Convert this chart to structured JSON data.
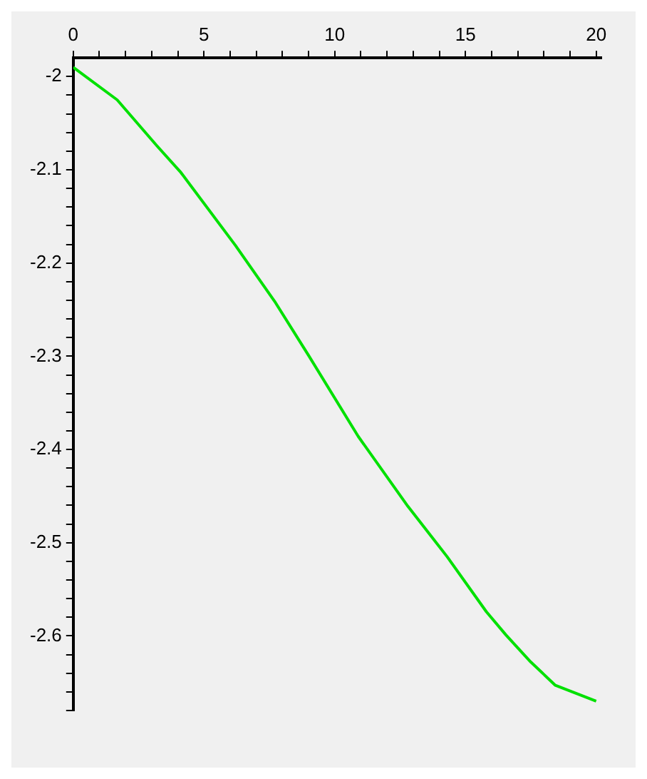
{
  "chart_data": {
    "type": "line",
    "x": [
      0,
      1.68,
      3.19,
      4.12,
      6.2,
      7.7,
      9.02,
      10.9,
      12.8,
      14.3,
      15.8,
      16.55,
      17.5,
      18.44,
      20
    ],
    "series": [
      {
        "color": "#00e000",
        "values": [
          -1.99,
          -2.025,
          -2.074,
          -2.103,
          -2.181,
          -2.241,
          -2.3,
          -2.386,
          -2.461,
          -2.515,
          -2.574,
          -2.599,
          -2.628,
          -2.653,
          -2.67
        ]
      }
    ],
    "xlim": [
      0,
      20.2
    ],
    "xticks": [
      0,
      {
        "value": 1,
        "label": null
      },
      {
        "value": 2,
        "label": null
      },
      {
        "value": 3,
        "label": null
      },
      {
        "value": 4,
        "label": null
      },
      5,
      {
        "value": 6,
        "label": null
      },
      {
        "value": 7,
        "label": null
      },
      {
        "value": 8,
        "label": null
      },
      {
        "value": 9,
        "label": null
      },
      10,
      {
        "value": 11,
        "label": null
      },
      {
        "value": 12,
        "label": null
      },
      {
        "value": 13,
        "label": null
      },
      {
        "value": 14,
        "label": null
      },
      15,
      {
        "value": 16,
        "label": null
      },
      {
        "value": 17,
        "label": null
      },
      {
        "value": 18,
        "label": null
      },
      {
        "value": 19,
        "label": null
      },
      20
    ],
    "ylim": [
      -2.68,
      -1.98
    ],
    "yticks": [
      -2,
      {
        "value": -2.02,
        "label": null
      },
      {
        "value": -2.04,
        "label": null
      },
      {
        "value": -2.06,
        "label": null
      },
      {
        "value": -2.08,
        "label": null
      },
      -2.1,
      {
        "value": -2.12,
        "label": null
      },
      {
        "value": -2.14,
        "label": null
      },
      {
        "value": -2.16,
        "label": null
      },
      {
        "value": -2.18,
        "label": null
      },
      -2.2,
      {
        "value": -2.22,
        "label": null
      },
      {
        "value": -2.24,
        "label": null
      },
      {
        "value": -2.26,
        "label": null
      },
      {
        "value": -2.28,
        "label": null
      },
      -2.3,
      {
        "value": -2.32,
        "label": null
      },
      {
        "value": -2.34,
        "label": null
      },
      {
        "value": -2.36,
        "label": null
      },
      {
        "value": -2.38,
        "label": null
      },
      -2.4,
      {
        "value": -2.42,
        "label": null
      },
      {
        "value": -2.44,
        "label": null
      },
      {
        "value": -2.46,
        "label": null
      },
      {
        "value": -2.48,
        "label": null
      },
      -2.5,
      {
        "value": -2.52,
        "label": null
      },
      {
        "value": -2.54,
        "label": null
      },
      {
        "value": -2.56,
        "label": null
      },
      {
        "value": -2.58,
        "label": null
      },
      -2.6,
      {
        "value": -2.62,
        "label": null
      },
      {
        "value": -2.64,
        "label": null
      },
      {
        "value": -2.66,
        "label": null
      },
      {
        "value": -2.68,
        "label": null
      }
    ],
    "grid": false,
    "legend": false,
    "marker": "none",
    "line_style": "solid"
  }
}
